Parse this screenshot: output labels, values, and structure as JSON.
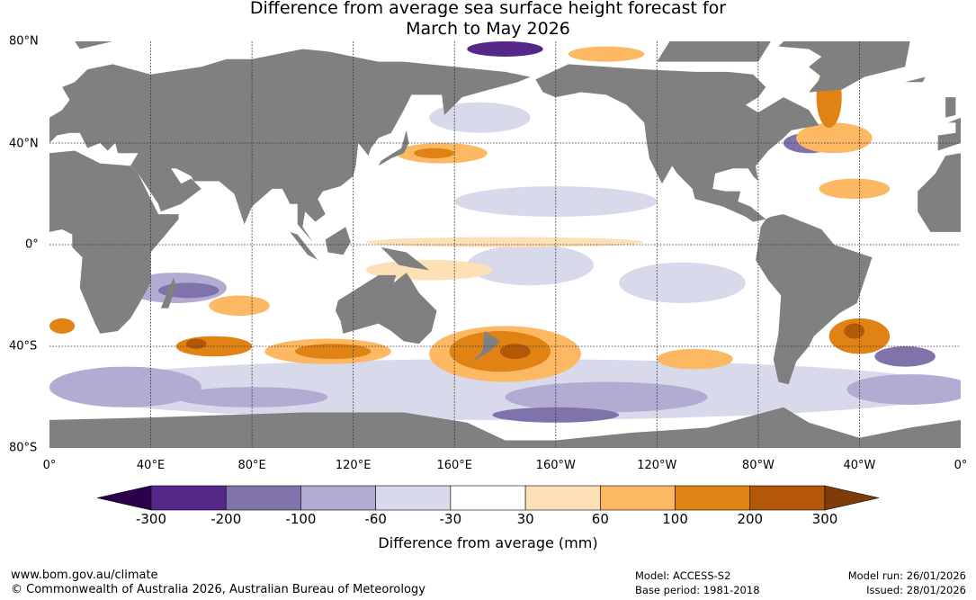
{
  "title_line1": "Difference from average sea surface height forecast for",
  "title_line2": "March to May 2026",
  "lat_labels": [
    "80°N",
    "40°N",
    "0°",
    "40°S",
    "80°S"
  ],
  "lon_labels": [
    "0°",
    "40°E",
    "80°E",
    "120°E",
    "160°E",
    "160°W",
    "120°W",
    "80°W",
    "40°W",
    "0°"
  ],
  "colorbar": {
    "ticks": [
      "-300",
      "-200",
      "-100",
      "-60",
      "-30",
      "30",
      "60",
      "100",
      "200",
      "300"
    ],
    "colors": [
      "#2d004b",
      "#542788",
      "#8073ac",
      "#b2abd2",
      "#d8daeb",
      "#ffffff",
      "#fee0b6",
      "#fdb863",
      "#e08214",
      "#b35806",
      "#7f3b08"
    ],
    "label": "Difference from average (mm)"
  },
  "colors": {
    "land": "#808080",
    "ocean": "#ffffff"
  },
  "footer": {
    "url": "www.bom.gov.au/climate",
    "copyright": "© Commonwealth of Australia 2026, Australian Bureau of Meteorology",
    "model": "Model: ACCESS-S2",
    "base_period": "Base period: 1981-2018",
    "model_run": "Model run: 26/01/2026",
    "issued": "Issued: 28/01/2026"
  }
}
